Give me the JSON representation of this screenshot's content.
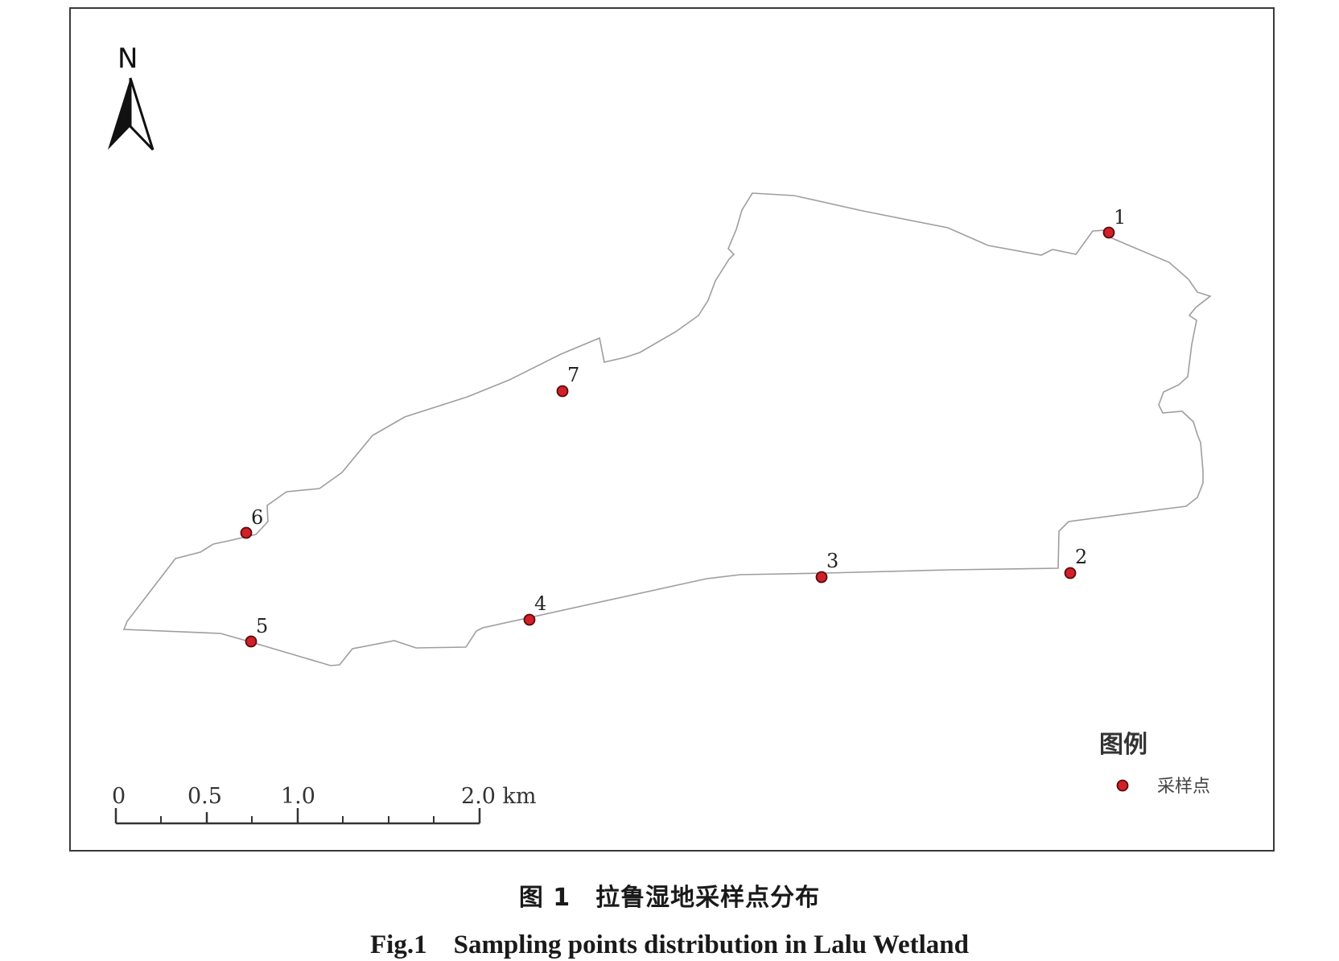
{
  "map": {
    "north_arrow_letter": "N",
    "boundary_color": "#9e9e9e",
    "point_fill_color": "#d0202a",
    "point_stroke_color": "#5a0a0a",
    "sampling_points": [
      {
        "id": "1",
        "label": "1"
      },
      {
        "id": "2",
        "label": "2"
      },
      {
        "id": "3",
        "label": "3"
      },
      {
        "id": "4",
        "label": "4"
      },
      {
        "id": "5",
        "label": "5"
      },
      {
        "id": "6",
        "label": "6"
      },
      {
        "id": "7",
        "label": "7"
      }
    ],
    "scale_bar": {
      "labels": [
        "0",
        "0.5",
        "1.0",
        "2.0 km"
      ]
    },
    "legend": {
      "title": "图例",
      "items": [
        {
          "label": "采样点",
          "symbol": "red-circle"
        }
      ]
    }
  },
  "caption": {
    "chinese": "图 1　拉鲁湿地采样点分布",
    "english": "Fig.1　Sampling points distribution in Lalu Wetland"
  }
}
